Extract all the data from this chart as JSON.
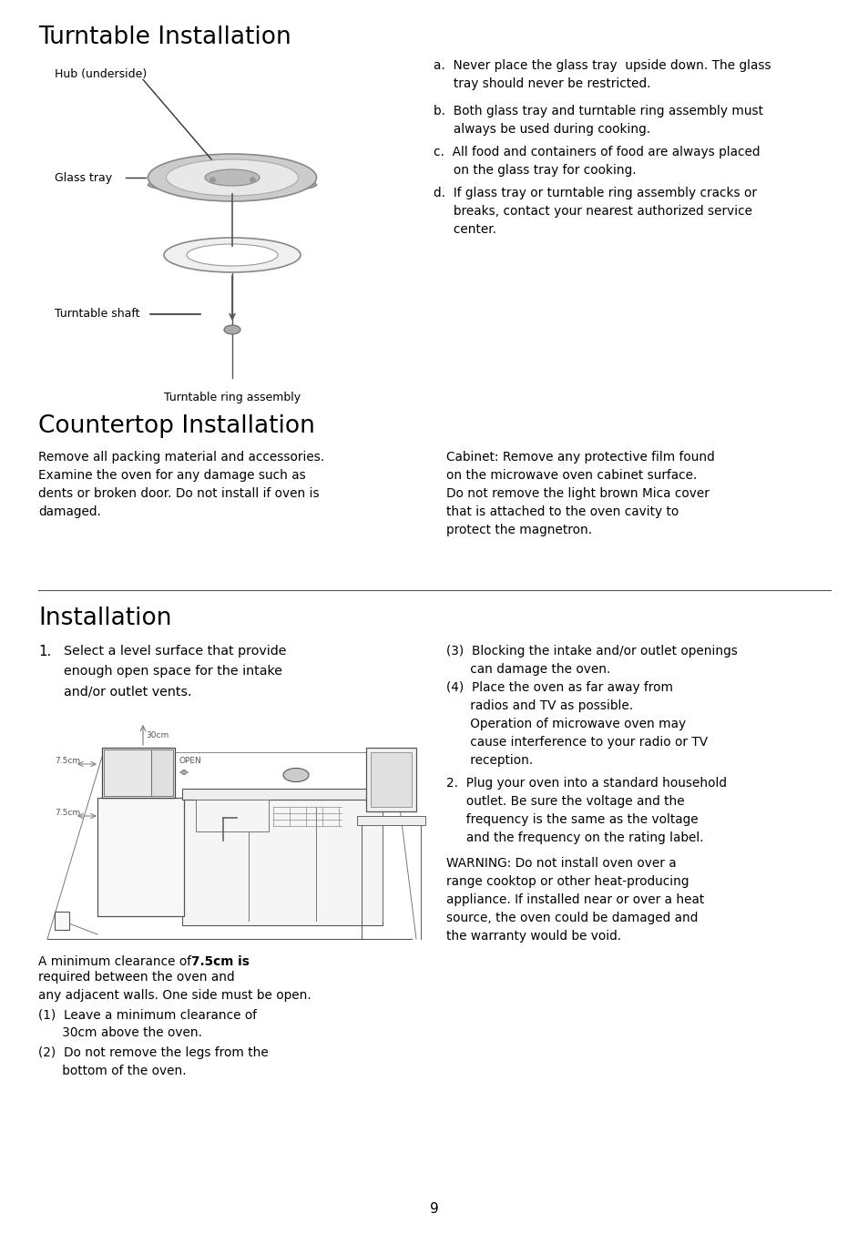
{
  "bg_color": "#ffffff",
  "text_color": "#000000",
  "page_number": "9",
  "section1_title": "Turntable Installation",
  "section2_title": "Countertop Installation",
  "section3_title": "Installation",
  "turntable_items_a": "a.  Never place the glass tray  upside down. The glass\n     tray should never be restricted.",
  "turntable_items_b": "b.  Both glass tray and turntable ring assembly must\n     always be used during cooking.",
  "turntable_items_c": "c.  All food and containers of food are always placed\n     on the glass tray for cooking.",
  "turntable_items_d": "d.  If glass tray or turntable ring assembly cracks or\n     breaks, contact your nearest authorized service\n     center.",
  "countertop_left": "Remove all packing material and accessories.\nExamine the oven for any damage such as\ndents or broken door. Do not install if oven is\ndamaged.",
  "countertop_right": "Cabinet: Remove any protective film found\non the microwave oven cabinet surface.\nDo not remove the light brown Mica cover\nthat is attached to the oven cavity to\nprotect the magnetron.",
  "install_item1": "Select a level surface that provide\nenough open space for the intake\nand/or outlet vents.",
  "install_clearance_normal": "A minimum clearance of ",
  "install_clearance_bold": "7.5cm is",
  "install_clearance_rest": "required between the oven and\nany adjacent walls. One side must be open.",
  "install_list1": "(1)  Leave a minimum clearance of\n      30cm above the oven.",
  "install_list2": "(2)  Do not remove the legs from the\n      bottom of the oven.",
  "right_col_3": "(3)  Blocking the intake and/or outlet openings\n      can damage the oven.",
  "right_col_4": "(4)  Place the oven as far away from\n      radios and TV as possible.\n      Operation of microwave oven may\n      cause interference to your radio or TV\n      reception.",
  "right_col_2": "2.  Plug your oven into a standard household\n     outlet. Be sure the voltage and the\n     frequency is the same as the voltage\n     and the frequency on the rating label.",
  "warning": "WARNING: Do not install oven over a\nrange cooktop or other heat-producing\nappliance. If installed near or over a heat\nsource, the oven could be damaged and\nthe warranty would be void.",
  "label_hub": "Hub (underside)",
  "label_glass": "Glass tray",
  "label_shaft": "Turntable shaft",
  "label_ring": "Turntable ring assembly"
}
